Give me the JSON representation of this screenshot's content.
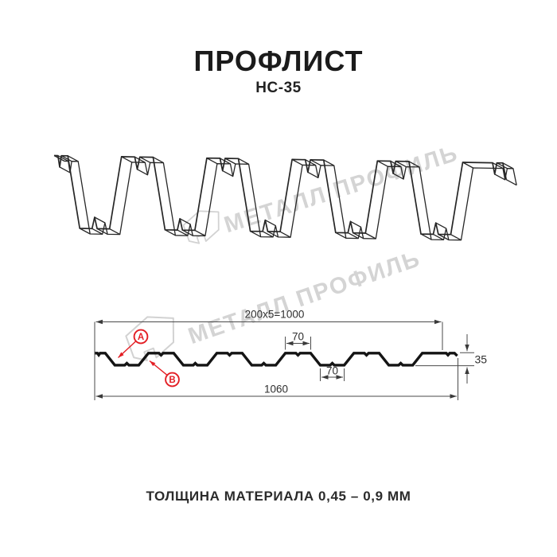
{
  "page": {
    "title": "ПРОФЛИСТ",
    "subtitle": "НС-35",
    "footer": "ТОЛЩИНА МАТЕРИАЛА 0,45 – 0,9 ММ"
  },
  "watermark": {
    "brand": "МЕТАЛЛ ПРОФИЛЬ"
  },
  "section": {
    "dim_coverage": "200x5=1000",
    "dim_overall": "1060",
    "dim_rib_top_width": "70",
    "dim_rib_bottom_width": "70",
    "dim_height": "35",
    "marker_a": "A",
    "marker_b": "B"
  },
  "colors": {
    "accent_red": "#e31e24",
    "line_dark": "#222222",
    "watermark_gray": "#d2d2d2"
  }
}
